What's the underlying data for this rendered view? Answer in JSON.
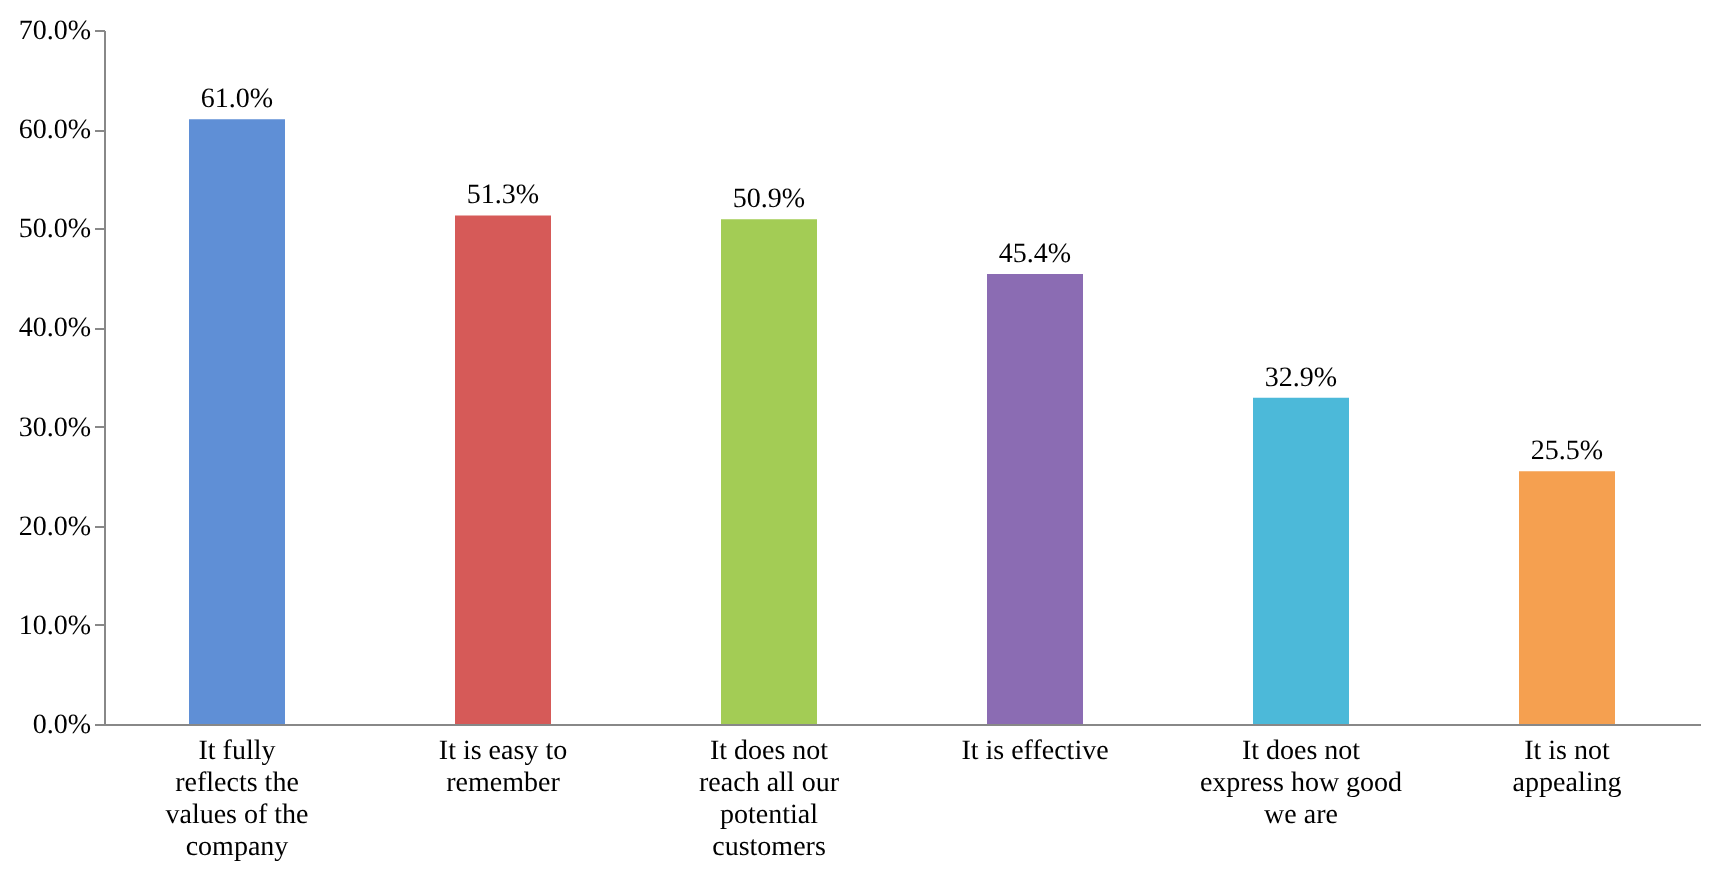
{
  "chart_data": {
    "type": "bar",
    "categories": [
      "It fully reflects the values of the company",
      "It is easy to remember",
      "It does not reach all our potential customers",
      "It is effective",
      "It does not express how good we are",
      "It is not appealing"
    ],
    "values": [
      61.0,
      51.3,
      50.9,
      45.4,
      32.9,
      25.5
    ],
    "value_labels": [
      "61.0%",
      "51.3%",
      "50.9%",
      "45.4%",
      "32.9%",
      "25.5%"
    ],
    "colors": [
      "#5f8fd6",
      "#d65a58",
      "#a3cc55",
      "#8b6cb3",
      "#4cb9d9",
      "#f5a050"
    ],
    "ylim": [
      0,
      70
    ],
    "yticks": [
      {
        "value": 0,
        "label": "0.0%"
      },
      {
        "value": 10,
        "label": "10.0%"
      },
      {
        "value": 20,
        "label": "20.0%"
      },
      {
        "value": 30,
        "label": "30.0%"
      },
      {
        "value": 40,
        "label": "40.0%"
      },
      {
        "value": 50,
        "label": "50.0%"
      },
      {
        "value": 60,
        "label": "60.0%"
      },
      {
        "value": 70,
        "label": "70.0%"
      }
    ],
    "grid": false
  }
}
